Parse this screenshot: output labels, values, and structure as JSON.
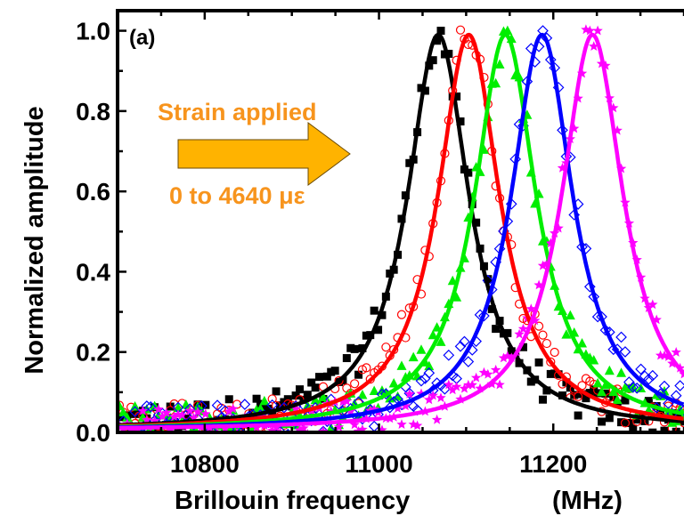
{
  "chart_data": {
    "type": "line",
    "panel_label": "(a)",
    "xlabel": "Brillouin frequency",
    "xunit": "(MHz)",
    "ylabel": "Normalized amplitude",
    "xlim": [
      10700,
      11350
    ],
    "ylim": [
      0.0,
      1.05
    ],
    "xticks": [
      10800,
      11000,
      11200
    ],
    "yticks": [
      "0.0",
      "0.2",
      "0.4",
      "0.6",
      "0.8",
      "1.0"
    ],
    "grid": false,
    "annotation": {
      "title": "Strain applied",
      "range": "0 to 4640 με",
      "color": "#f7941d",
      "arrow_color": "#ffb300"
    },
    "series": [
      {
        "center": 11068,
        "width": 43,
        "color": "#000000",
        "marker": "square-filled"
      },
      {
        "center": 11103,
        "width": 43,
        "color": "#ff0000",
        "marker": "circle-open"
      },
      {
        "center": 11145,
        "width": 43,
        "color": "#00ee00",
        "marker": "triangle-filled"
      },
      {
        "center": 11187,
        "width": 43,
        "color": "#0000ff",
        "marker": "diamond-open"
      },
      {
        "center": 11245,
        "width": 43,
        "color": "#ff00ff",
        "marker": "star-filled"
      }
    ]
  }
}
